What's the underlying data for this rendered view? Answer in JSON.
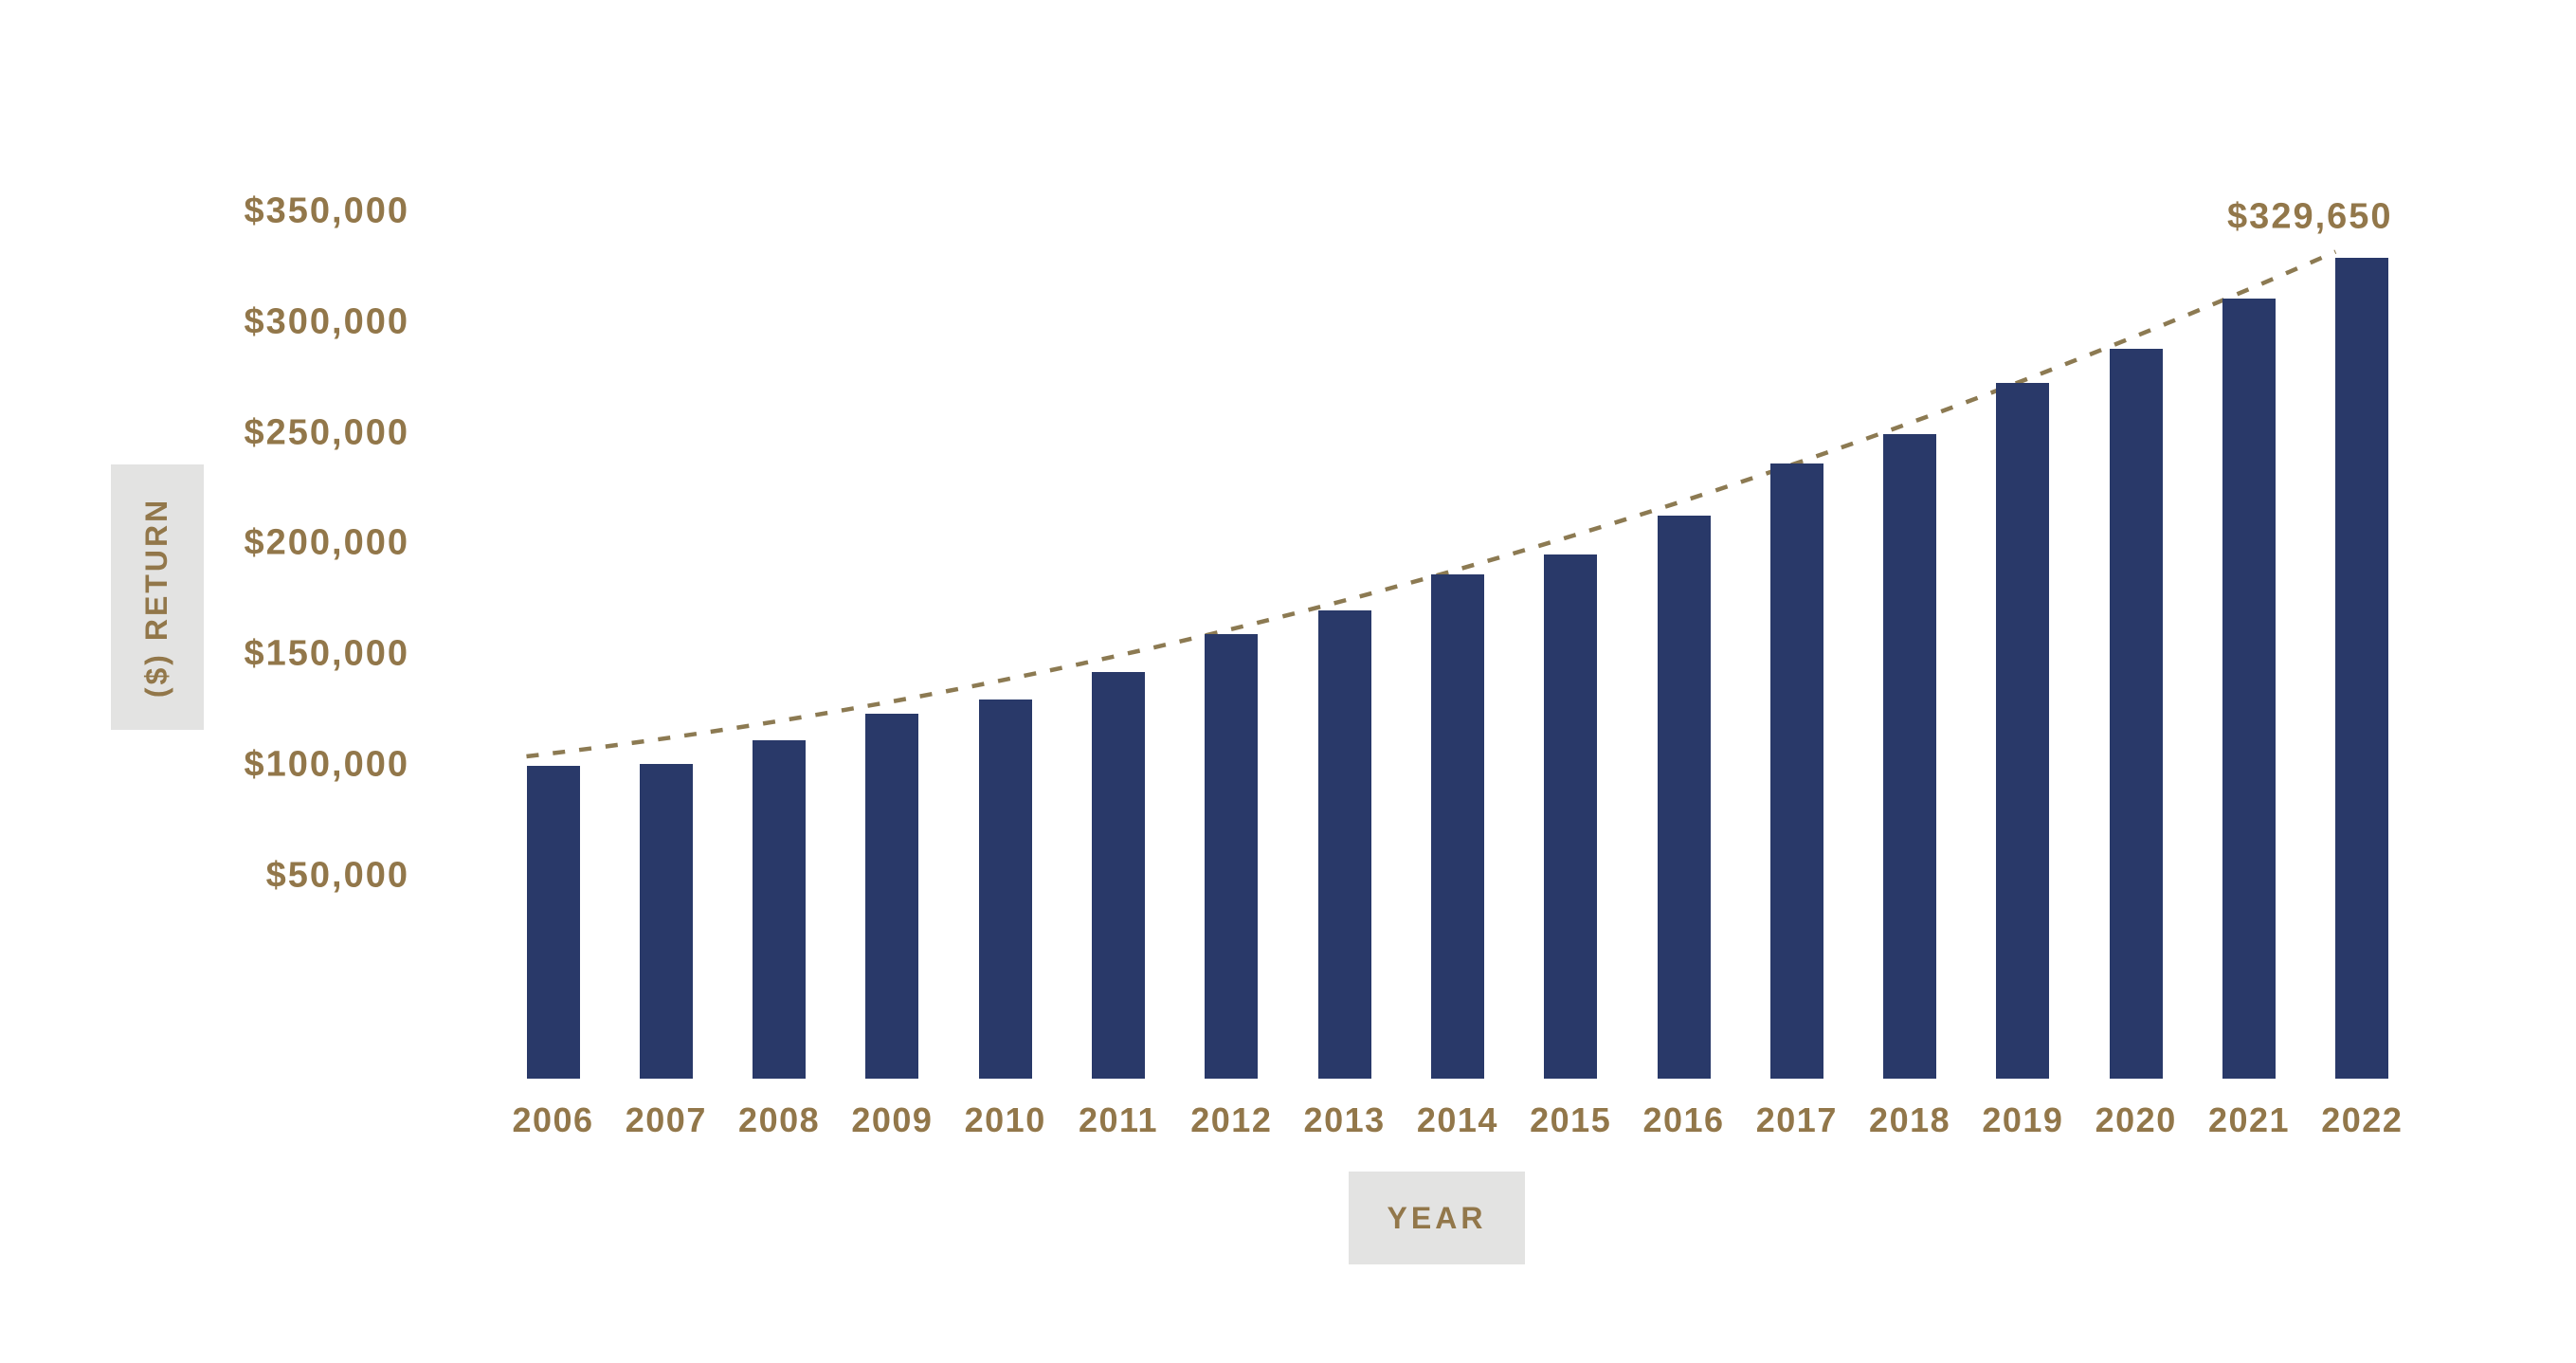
{
  "page": {
    "background_color": "#FFFFFF"
  },
  "chart_data": {
    "type": "bar",
    "title": "",
    "xlabel": "YEAR",
    "ylabel": "($) RETURN",
    "categories": [
      "2006",
      "2007",
      "2008",
      "2009",
      "2010",
      "2011",
      "2012",
      "2013",
      "2014",
      "2015",
      "2016",
      "2017",
      "2018",
      "2019",
      "2020",
      "2021",
      "2022"
    ],
    "values": [
      100000,
      101000,
      111500,
      123500,
      130000,
      142500,
      159500,
      170000,
      186500,
      195500,
      213000,
      236500,
      250000,
      273000,
      288500,
      311000,
      329650
    ],
    "y_ticks": [
      {
        "value": 350000,
        "label": "$350,000"
      },
      {
        "value": 300000,
        "label": "$300,000"
      },
      {
        "value": 250000,
        "label": "$250,000"
      },
      {
        "value": 200000,
        "label": "$200,000"
      },
      {
        "value": 150000,
        "label": "$150,000"
      },
      {
        "value": 100000,
        "label": "$100,000"
      },
      {
        "value": 50000,
        "label": "$50,000"
      }
    ],
    "ylim_labeled": [
      50000,
      350000
    ],
    "grid": "none",
    "legend": "none",
    "annotation": {
      "text": "$329,650",
      "target_year": "2022"
    },
    "trendline": {
      "style": "dashed",
      "shape": "smooth rising curve above bar tops from 2006 to 2022 bar corner",
      "color": "#8C7A52"
    },
    "colors": {
      "bar": "#293969",
      "gold_text": "#92774A",
      "axis_title_box": "#E3E3E2"
    }
  }
}
